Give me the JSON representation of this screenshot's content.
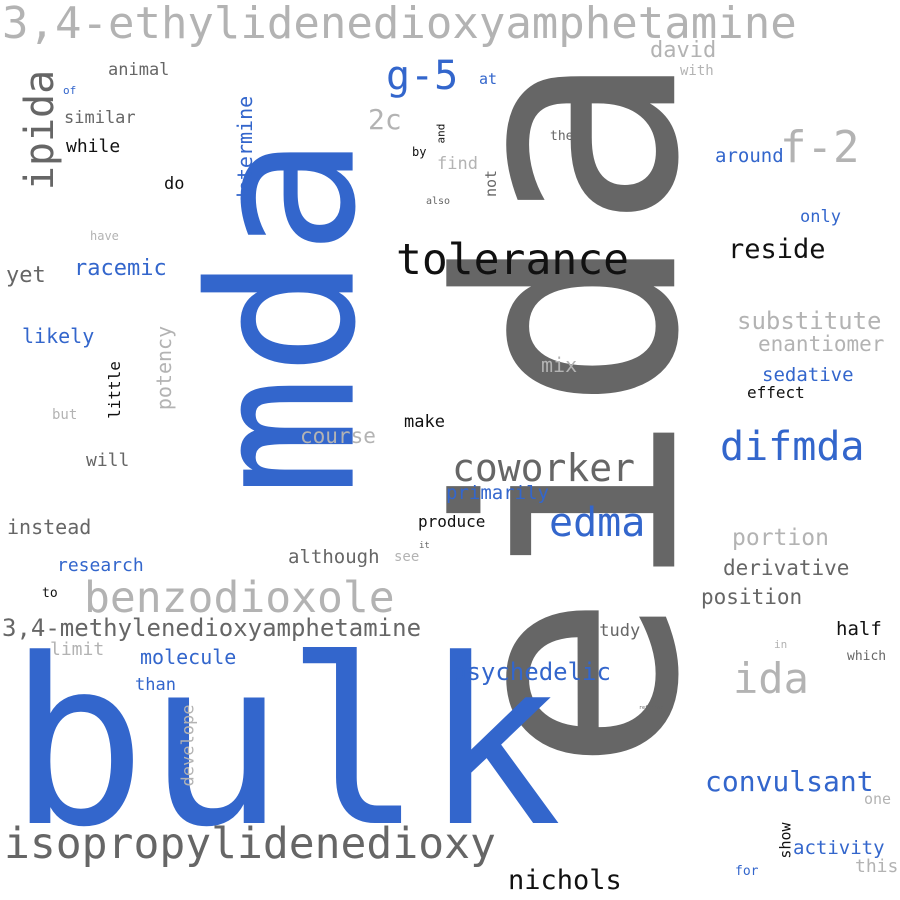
{
  "words": [
    {
      "text": "3,4-ethylidenedioxyamphetamine",
      "tone": "light"
    },
    {
      "text": "mda",
      "tone": "blue"
    },
    {
      "text": "eida",
      "tone": "dark"
    },
    {
      "text": "bulk",
      "tone": "blue"
    },
    {
      "text": "ipida",
      "tone": "dark"
    },
    {
      "text": "g-5",
      "tone": "blue"
    },
    {
      "text": "david",
      "tone": "light"
    },
    {
      "text": "animal",
      "tone": "dark"
    },
    {
      "text": "with",
      "tone": "light"
    },
    {
      "text": "at",
      "tone": "blue"
    },
    {
      "text": "of",
      "tone": "blue"
    },
    {
      "text": "similar",
      "tone": "dark"
    },
    {
      "text": "2c",
      "tone": "light"
    },
    {
      "text": "and",
      "tone": "black"
    },
    {
      "text": "the",
      "tone": "dark"
    },
    {
      "text": "f-2",
      "tone": "light"
    },
    {
      "text": "while",
      "tone": "black"
    },
    {
      "text": "determine",
      "tone": "blue"
    },
    {
      "text": "by",
      "tone": "black"
    },
    {
      "text": "find",
      "tone": "light"
    },
    {
      "text": "not",
      "tone": "dark"
    },
    {
      "text": "around",
      "tone": "blue"
    },
    {
      "text": "do",
      "tone": "black"
    },
    {
      "text": "also",
      "tone": "dark"
    },
    {
      "text": "only",
      "tone": "blue"
    },
    {
      "text": "have",
      "tone": "light"
    },
    {
      "text": "tolerance",
      "tone": "black"
    },
    {
      "text": "reside",
      "tone": "black"
    },
    {
      "text": "racemic",
      "tone": "blue"
    },
    {
      "text": "yet",
      "tone": "dark"
    },
    {
      "text": "likely",
      "tone": "blue"
    },
    {
      "text": "potency",
      "tone": "light"
    },
    {
      "text": "substitute",
      "tone": "light"
    },
    {
      "text": "enantiomer",
      "tone": "light"
    },
    {
      "text": "mix",
      "tone": "light"
    },
    {
      "text": "sedative",
      "tone": "blue"
    },
    {
      "text": "effect",
      "tone": "black"
    },
    {
      "text": "little",
      "tone": "black"
    },
    {
      "text": "but",
      "tone": "light"
    },
    {
      "text": "make",
      "tone": "black"
    },
    {
      "text": "course",
      "tone": "light"
    },
    {
      "text": "difmda",
      "tone": "blue"
    },
    {
      "text": "will",
      "tone": "dark"
    },
    {
      "text": "coworker",
      "tone": "dark"
    },
    {
      "text": "primarily",
      "tone": "blue"
    },
    {
      "text": "instead",
      "tone": "dark"
    },
    {
      "text": "produce",
      "tone": "black"
    },
    {
      "text": "edma",
      "tone": "blue"
    },
    {
      "text": "portion",
      "tone": "light"
    },
    {
      "text": "it",
      "tone": "dark"
    },
    {
      "text": "research",
      "tone": "blue"
    },
    {
      "text": "although",
      "tone": "dark"
    },
    {
      "text": "see",
      "tone": "light"
    },
    {
      "text": "derivative",
      "tone": "dark"
    },
    {
      "text": "to",
      "tone": "black"
    },
    {
      "text": "benzodioxole",
      "tone": "light"
    },
    {
      "text": "position",
      "tone": "dark"
    },
    {
      "text": "3,4-methylenedioxyamphetamine",
      "tone": "dark"
    },
    {
      "text": "study",
      "tone": "dark"
    },
    {
      "text": "half",
      "tone": "black"
    },
    {
      "text": "limit",
      "tone": "light"
    },
    {
      "text": "molecule",
      "tone": "blue"
    },
    {
      "text": "in",
      "tone": "light"
    },
    {
      "text": "which",
      "tone": "dark"
    },
    {
      "text": "psychedelic",
      "tone": "blue"
    },
    {
      "text": "ida",
      "tone": "light"
    },
    {
      "text": "than",
      "tone": "blue"
    },
    {
      "text": "reference",
      "tone": "dark"
    },
    {
      "text": "develope",
      "tone": "light"
    },
    {
      "text": "convulsant",
      "tone": "blue"
    },
    {
      "text": "one",
      "tone": "light"
    },
    {
      "text": "isopropylidenedioxy",
      "tone": "dark"
    },
    {
      "text": "show",
      "tone": "black"
    },
    {
      "text": "activity",
      "tone": "blue"
    },
    {
      "text": "this",
      "tone": "light"
    },
    {
      "text": "nichols",
      "tone": "black"
    },
    {
      "text": "for",
      "tone": "blue"
    }
  ]
}
